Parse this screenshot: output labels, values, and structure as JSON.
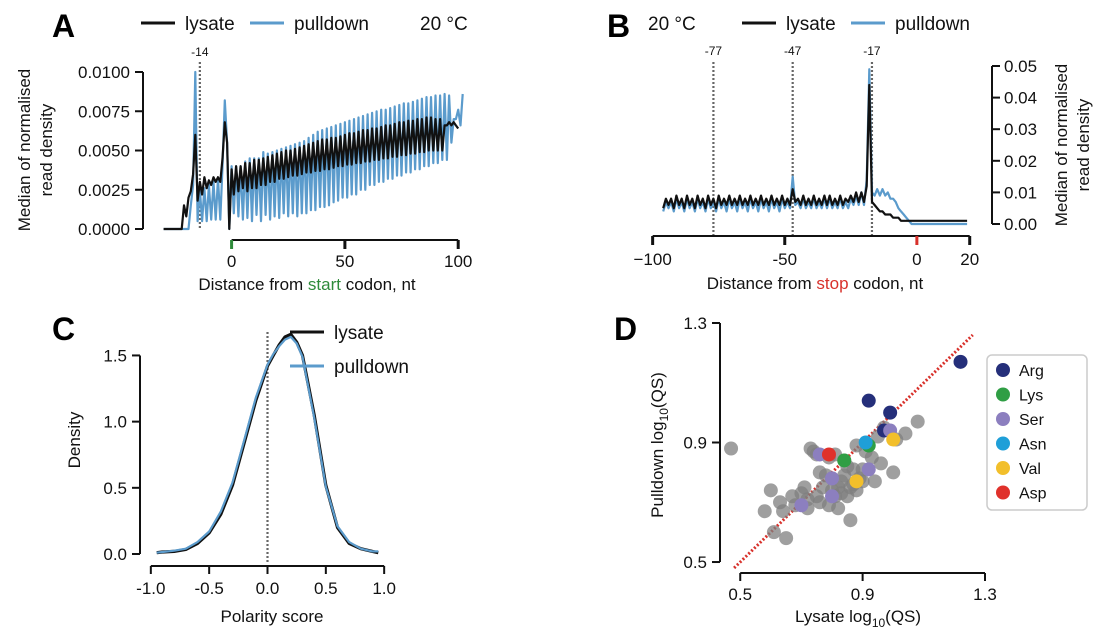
{
  "colors": {
    "lysate": "#111111",
    "pulldown": "#5b9bcc",
    "start_codon": "#2e8b3a",
    "stop_codon": "#d8312b",
    "grey_point": "#7f7f7f",
    "diagonal": "#d8312b"
  },
  "panels": {
    "A": "A",
    "B": "B",
    "C": "C",
    "D": "D"
  },
  "chart_data": [
    {
      "id": "A",
      "type": "line",
      "panel_label": "A",
      "temperature": "20 °C",
      "legend_labels": [
        "lysate",
        "pulldown"
      ],
      "ylabel": [
        "Median of normalised",
        "read density"
      ],
      "xlabel": {
        "pre": "Distance from ",
        "word": "start",
        "post": " codon, nt"
      },
      "xticks": [
        "0",
        "50",
        "100"
      ],
      "xtick_values": [
        0,
        50,
        100
      ],
      "yticks": [
        "0.0000",
        "0.0025",
        "0.0050",
        "0.0075",
        "0.0100"
      ],
      "ytick_values": [
        0,
        0.0025,
        0.005,
        0.0075,
        0.01
      ],
      "xlim": [
        -36,
        103
      ],
      "ylim": [
        0,
        0.01
      ],
      "markers": [
        {
          "x": -14,
          "label": "-14"
        }
      ],
      "highlight_x": 0,
      "series": [
        {
          "name": "lysate",
          "x_start": -30,
          "values": [
            0.0,
            0.0,
            0.0,
            0.0,
            0.0,
            0.0,
            0.0,
            0.0,
            0.0,
            0.0015,
            0.0008,
            0.002,
            0.0024,
            0.0035,
            0.006,
            0.0018,
            0.003,
            0.0022,
            0.0033,
            0.0026,
            0.0031,
            0.0028,
            0.0033,
            0.003,
            0.0033,
            0.003,
            0.0045,
            0.0068,
            0.0055,
            0.0,
            0.0038,
            0.0022,
            0.004,
            0.0024,
            0.004,
            0.0026,
            0.0042,
            0.0024,
            0.0042,
            0.0026,
            0.0044,
            0.0026,
            0.0044,
            0.0028,
            0.0045,
            0.0028,
            0.0046,
            0.003,
            0.0047,
            0.003,
            0.0048,
            0.0032,
            0.0049,
            0.0032,
            0.005,
            0.0033,
            0.005,
            0.0034,
            0.0051,
            0.0034,
            0.0052,
            0.0035,
            0.0053,
            0.0036,
            0.0054,
            0.0036,
            0.0055,
            0.0037,
            0.0056,
            0.0037,
            0.0057,
            0.0038,
            0.0057,
            0.0038,
            0.0058,
            0.0039,
            0.0058,
            0.004,
            0.0059,
            0.004,
            0.006,
            0.0041,
            0.0061,
            0.0041,
            0.0061,
            0.0042,
            0.0062,
            0.0042,
            0.0063,
            0.0043,
            0.0063,
            0.0043,
            0.0064,
            0.0044,
            0.0064,
            0.0044,
            0.0065,
            0.0045,
            0.0066,
            0.0045,
            0.0066,
            0.0046,
            0.0067,
            0.0046,
            0.0068,
            0.0047,
            0.0068,
            0.0047,
            0.0069,
            0.0048,
            0.0069,
            0.0048,
            0.007,
            0.0049,
            0.007,
            0.0049,
            0.0071,
            0.005,
            0.0071,
            0.005,
            0.007,
            0.005,
            0.007,
            0.005,
            0.0066,
            0.0066,
            0.0068,
            0.0066,
            0.0068,
            0.0066,
            0.0064
          ]
        },
        {
          "name": "pulldown",
          "x_start": -30,
          "values": [
            0.0,
            0.0,
            0.0,
            0.0,
            0.0,
            0.0,
            0.0,
            0.0,
            0.0,
            0.0,
            0.0,
            0.0,
            0.0015,
            0.0028,
            0.01,
            0.0005,
            0.0025,
            0.0005,
            0.0026,
            0.0005,
            0.0028,
            0.0006,
            0.003,
            0.0006,
            0.0032,
            0.0006,
            0.004,
            0.0082,
            0.0055,
            0.0,
            0.004,
            0.001,
            0.004,
            0.0008,
            0.004,
            0.0006,
            0.0043,
            0.0007,
            0.0045,
            0.0005,
            0.0045,
            0.0009,
            0.0045,
            0.0005,
            0.0049,
            0.0009,
            0.0048,
            0.0006,
            0.0049,
            0.0008,
            0.005,
            0.0007,
            0.0051,
            0.001,
            0.0052,
            0.0008,
            0.0053,
            0.001,
            0.0054,
            0.0008,
            0.0055,
            0.001,
            0.0056,
            0.001,
            0.0058,
            0.0012,
            0.006,
            0.0012,
            0.0062,
            0.0014,
            0.0063,
            0.0014,
            0.0064,
            0.0015,
            0.0065,
            0.0017,
            0.0066,
            0.0018,
            0.0067,
            0.002,
            0.0068,
            0.002,
            0.0069,
            0.0022,
            0.007,
            0.0022,
            0.0071,
            0.0025,
            0.0072,
            0.0025,
            0.0073,
            0.0028,
            0.0074,
            0.0028,
            0.0075,
            0.003,
            0.0076,
            0.003,
            0.0076,
            0.0032,
            0.0077,
            0.0032,
            0.0078,
            0.0034,
            0.0079,
            0.0034,
            0.008,
            0.0036,
            0.008,
            0.0036,
            0.0081,
            0.0038,
            0.0082,
            0.0038,
            0.0083,
            0.004,
            0.0084,
            0.004,
            0.0084,
            0.0042,
            0.0085,
            0.0042,
            0.0085,
            0.0044,
            0.0086,
            0.0044,
            0.0085,
            0.0055,
            0.007,
            0.007,
            0.0076,
            0.0066,
            0.0086
          ]
        }
      ]
    },
    {
      "id": "B",
      "type": "line",
      "panel_label": "B",
      "temperature": "20 °C",
      "legend_labels": [
        "lysate",
        "pulldown"
      ],
      "ylabel": [
        "Median of normalised",
        "read density"
      ],
      "xlabel": {
        "pre": "Distance from ",
        "word": "stop",
        "post": " codon, nt"
      },
      "xticks": [
        "−100",
        "-50",
        "0",
        "20"
      ],
      "xtick_values": [
        -100,
        -50,
        0,
        20
      ],
      "yticks": [
        "0.00",
        "0.01",
        "0.02",
        "0.03",
        "0.04",
        "0.05"
      ],
      "ytick_values": [
        0,
        0.01,
        0.02,
        0.03,
        0.04,
        0.05
      ],
      "xlim": [
        -101,
        22
      ],
      "ylim": [
        0,
        0.05
      ],
      "markers": [
        {
          "x": -77,
          "label": "-77"
        },
        {
          "x": -47,
          "label": "-47"
        },
        {
          "x": -17,
          "label": "-17"
        }
      ],
      "highlight_x": 0,
      "series": [
        {
          "name": "lysate",
          "x_start": -96,
          "values": [
            0.005,
            0.008,
            0.006,
            0.008,
            0.005,
            0.009,
            0.006,
            0.008,
            0.005,
            0.009,
            0.006,
            0.008,
            0.005,
            0.009,
            0.006,
            0.008,
            0.005,
            0.009,
            0.006,
            0.008,
            0.005,
            0.009,
            0.006,
            0.008,
            0.006,
            0.009,
            0.006,
            0.008,
            0.006,
            0.009,
            0.006,
            0.008,
            0.006,
            0.009,
            0.006,
            0.008,
            0.006,
            0.009,
            0.006,
            0.008,
            0.006,
            0.009,
            0.006,
            0.008,
            0.006,
            0.009,
            0.006,
            0.008,
            0.006,
            0.011,
            0.007,
            0.008,
            0.006,
            0.009,
            0.006,
            0.008,
            0.006,
            0.009,
            0.006,
            0.008,
            0.006,
            0.009,
            0.006,
            0.009,
            0.006,
            0.008,
            0.006,
            0.009,
            0.006,
            0.008,
            0.007,
            0.009,
            0.007,
            0.01,
            0.007,
            0.01,
            0.007,
            0.012,
            0.044,
            0.007,
            0.006,
            0.005,
            0.004,
            0.004,
            0.003,
            0.003,
            0.003,
            0.002,
            0.002,
            0.002,
            0.001,
            0.001,
            0.001,
            0.001,
            0.001,
            0.001,
            0.001,
            0.001,
            0.001,
            0.001,
            0.001,
            0.001,
            0.001,
            0.001,
            0.001,
            0.001,
            0.001,
            0.001,
            0.001,
            0.001,
            0.001,
            0.001,
            0.001,
            0.001,
            0.001,
            0.001
          ]
        },
        {
          "name": "pulldown",
          "x_start": -96,
          "values": [
            0.004,
            0.007,
            0.005,
            0.007,
            0.004,
            0.008,
            0.005,
            0.007,
            0.004,
            0.008,
            0.005,
            0.007,
            0.004,
            0.008,
            0.005,
            0.007,
            0.004,
            0.008,
            0.005,
            0.007,
            0.004,
            0.008,
            0.005,
            0.007,
            0.004,
            0.008,
            0.005,
            0.007,
            0.004,
            0.008,
            0.005,
            0.007,
            0.004,
            0.008,
            0.005,
            0.007,
            0.004,
            0.008,
            0.005,
            0.007,
            0.004,
            0.008,
            0.005,
            0.007,
            0.004,
            0.008,
            0.005,
            0.007,
            0.005,
            0.015,
            0.006,
            0.007,
            0.005,
            0.008,
            0.005,
            0.007,
            0.005,
            0.008,
            0.005,
            0.007,
            0.005,
            0.008,
            0.005,
            0.008,
            0.005,
            0.007,
            0.005,
            0.008,
            0.005,
            0.007,
            0.005,
            0.008,
            0.006,
            0.009,
            0.006,
            0.01,
            0.006,
            0.014,
            0.049,
            0.01,
            0.009,
            0.011,
            0.009,
            0.011,
            0.009,
            0.01,
            0.008,
            0.008,
            0.007,
            0.005,
            0.004,
            0.003,
            0.002,
            0.001,
            0.0,
            0.0,
            0.0,
            0.0,
            0.0,
            0.0,
            0.0,
            0.0,
            0.0,
            0.0,
            0.0,
            0.0,
            0.0,
            0.0,
            0.0,
            0.0,
            0.0,
            0.0,
            0.0,
            0.0,
            0.0,
            0.0
          ]
        }
      ]
    },
    {
      "id": "C",
      "type": "line",
      "panel_label": "C",
      "legend_labels": [
        "lysate",
        "pulldown"
      ],
      "ylabel": "Density",
      "xlabel": "Polarity score",
      "xticks": [
        "-1.0",
        "-0.5",
        "0.0",
        "0.5",
        "1.0"
      ],
      "xtick_values": [
        -1,
        -0.5,
        0,
        0.5,
        1
      ],
      "yticks": [
        "0.0",
        "0.5",
        "1.0",
        "1.5"
      ],
      "ytick_values": [
        0,
        0.5,
        1.0,
        1.5
      ],
      "xlim": [
        -1.05,
        1.05
      ],
      "ylim": [
        0,
        1.73
      ],
      "zero_line_x": 0,
      "x": [
        -0.95,
        -0.9,
        -0.8,
        -0.7,
        -0.6,
        -0.5,
        -0.4,
        -0.3,
        -0.2,
        -0.1,
        0.0,
        0.05,
        0.1,
        0.15,
        0.2,
        0.25,
        0.3,
        0.4,
        0.5,
        0.6,
        0.7,
        0.8,
        0.9,
        0.95
      ],
      "series": [
        {
          "name": "lysate",
          "values": [
            0.01,
            0.015,
            0.02,
            0.035,
            0.08,
            0.16,
            0.3,
            0.52,
            0.84,
            1.16,
            1.42,
            1.5,
            1.58,
            1.64,
            1.66,
            1.6,
            1.5,
            1.05,
            0.52,
            0.2,
            0.08,
            0.04,
            0.02,
            0.01
          ]
        },
        {
          "name": "pulldown",
          "values": [
            0.01,
            0.015,
            0.025,
            0.04,
            0.09,
            0.17,
            0.32,
            0.54,
            0.86,
            1.18,
            1.43,
            1.51,
            1.57,
            1.62,
            1.64,
            1.59,
            1.49,
            1.03,
            0.51,
            0.21,
            0.09,
            0.04,
            0.02,
            0.02
          ]
        }
      ]
    },
    {
      "id": "D",
      "type": "scatter",
      "panel_label": "D",
      "xlabel": {
        "pre": "Lysate log",
        "sub": "10",
        "post": "(QS)"
      },
      "ylabel": {
        "pre": "Pulldown log",
        "sub": "10",
        "post": "(QS)"
      },
      "xticks": [
        "0.5",
        "0.9",
        "1.3"
      ],
      "xtick_values": [
        0.5,
        0.9,
        1.3
      ],
      "yticks": [
        "0.5",
        "0.9",
        "1.3"
      ],
      "ytick_values": [
        0.5,
        0.9,
        1.3
      ],
      "xlim": [
        0.46,
        1.3
      ],
      "ylim": [
        0.48,
        1.3
      ],
      "diagonal": true,
      "legend": [
        {
          "name": "Arg",
          "color": "#252f7a"
        },
        {
          "name": "Lys",
          "color": "#2f9e44"
        },
        {
          "name": "Ser",
          "color": "#8c7fbf"
        },
        {
          "name": "Asn",
          "color": "#1f9fd8"
        },
        {
          "name": "Val",
          "color": "#f2bf2b"
        },
        {
          "name": "Asp",
          "color": "#e0312b"
        }
      ],
      "grey_points": [
        [
          0.47,
          0.88
        ],
        [
          0.58,
          0.67
        ],
        [
          0.61,
          0.6
        ],
        [
          0.63,
          0.7
        ],
        [
          0.64,
          0.67
        ],
        [
          0.65,
          0.58
        ],
        [
          0.67,
          0.72
        ],
        [
          0.68,
          0.69
        ],
        [
          0.7,
          0.73
        ],
        [
          0.71,
          0.75
        ],
        [
          0.72,
          0.68
        ],
        [
          0.72,
          0.71
        ],
        [
          0.73,
          0.88
        ],
        [
          0.74,
          0.87
        ],
        [
          0.75,
          0.86
        ],
        [
          0.75,
          0.72
        ],
        [
          0.76,
          0.8
        ],
        [
          0.76,
          0.7
        ],
        [
          0.77,
          0.75
        ],
        [
          0.78,
          0.79
        ],
        [
          0.79,
          0.85
        ],
        [
          0.79,
          0.69
        ],
        [
          0.8,
          0.78
        ],
        [
          0.8,
          0.74
        ],
        [
          0.81,
          0.72
        ],
        [
          0.81,
          0.86
        ],
        [
          0.82,
          0.68
        ],
        [
          0.82,
          0.75
        ],
        [
          0.83,
          0.77
        ],
        [
          0.83,
          0.73
        ],
        [
          0.84,
          0.79
        ],
        [
          0.84,
          0.84
        ],
        [
          0.85,
          0.82
        ],
        [
          0.85,
          0.72
        ],
        [
          0.86,
          0.75
        ],
        [
          0.86,
          0.64
        ],
        [
          0.87,
          0.76
        ],
        [
          0.87,
          0.81
        ],
        [
          0.88,
          0.89
        ],
        [
          0.88,
          0.74
        ],
        [
          0.89,
          0.78
        ],
        [
          0.9,
          0.77
        ],
        [
          0.9,
          0.81
        ],
        [
          0.91,
          0.87
        ],
        [
          0.93,
          0.85
        ],
        [
          0.94,
          0.77
        ],
        [
          0.95,
          0.92
        ],
        [
          0.96,
          0.83
        ],
        [
          0.97,
          0.95
        ],
        [
          1.0,
          0.8
        ],
        [
          1.01,
          0.91
        ],
        [
          1.04,
          0.93
        ],
        [
          1.08,
          0.97
        ],
        [
          0.6,
          0.74
        ]
      ],
      "colored_points": [
        {
          "name": "Arg",
          "x": 0.92,
          "y": 1.04
        },
        {
          "name": "Arg",
          "x": 0.99,
          "y": 1.0
        },
        {
          "name": "Arg",
          "x": 0.97,
          "y": 0.94
        },
        {
          "name": "Arg",
          "x": 1.22,
          "y": 1.17
        },
        {
          "name": "Lys",
          "x": 0.92,
          "y": 0.89
        },
        {
          "name": "Lys",
          "x": 0.84,
          "y": 0.84
        },
        {
          "name": "Ser",
          "x": 0.76,
          "y": 0.86
        },
        {
          "name": "Ser",
          "x": 0.8,
          "y": 0.78
        },
        {
          "name": "Ser",
          "x": 0.8,
          "y": 0.72
        },
        {
          "name": "Ser",
          "x": 0.7,
          "y": 0.69
        },
        {
          "name": "Ser",
          "x": 0.99,
          "y": 0.94
        },
        {
          "name": "Ser",
          "x": 0.92,
          "y": 0.81
        },
        {
          "name": "Asn",
          "x": 0.91,
          "y": 0.9
        },
        {
          "name": "Val",
          "x": 1.0,
          "y": 0.91
        },
        {
          "name": "Val",
          "x": 0.88,
          "y": 0.77
        },
        {
          "name": "Asp",
          "x": 0.79,
          "y": 0.86
        }
      ]
    }
  ]
}
